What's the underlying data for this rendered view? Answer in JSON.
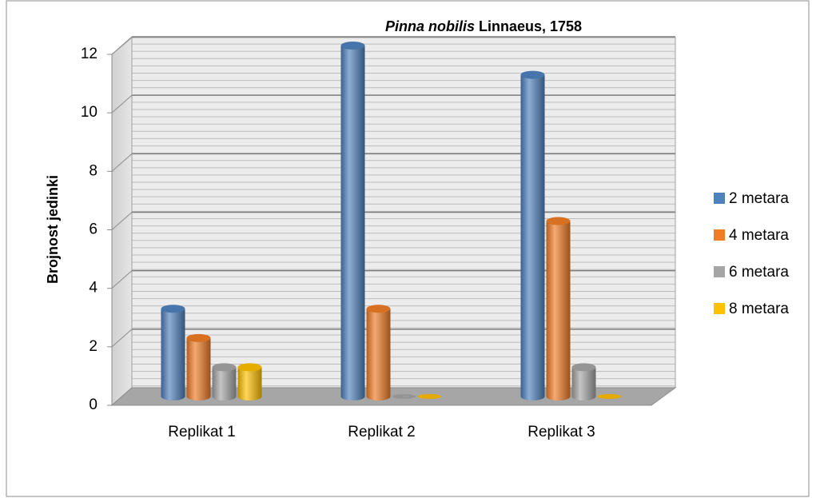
{
  "chart_data": {
    "type": "bar3d",
    "title": [
      "Pinna nobilis",
      "Linnaeus, 1758"
    ],
    "y_label": "Brojnost jedinki",
    "categories": [
      "Replikat 1",
      "Replikat 2",
      "Replikat 3"
    ],
    "series": [
      {
        "name": "2 metara",
        "color": "#4f81bd",
        "values": [
          3,
          12,
          11
        ]
      },
      {
        "name": "4 metara",
        "color": "#f07c26",
        "values": [
          2,
          3,
          6
        ]
      },
      {
        "name": "6 metara",
        "color": "#a5a5a5",
        "values": [
          1,
          0,
          1
        ]
      },
      {
        "name": "8 metara",
        "color": "#ffc000",
        "values": [
          1,
          0,
          0
        ]
      }
    ],
    "ylim": [
      0,
      12
    ],
    "yticks": [
      0,
      2,
      4,
      6,
      8,
      10,
      12
    ],
    "grid": true,
    "legend": "right"
  }
}
